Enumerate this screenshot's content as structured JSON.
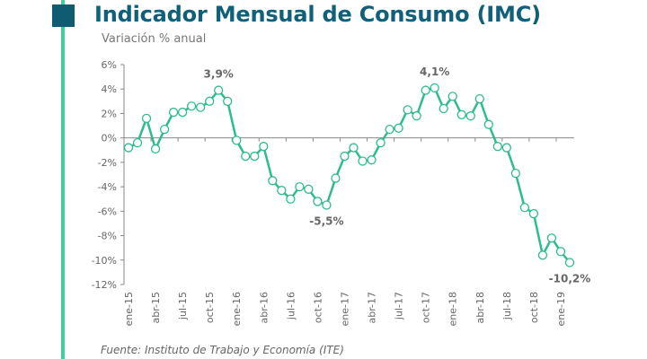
{
  "header": {
    "title": "Indicador Mensual de Consumo (IMC)",
    "subtitle": "Variación % anual"
  },
  "footer": {
    "source": "Fuente: Instituto de Trabajo y Economía (ITE)"
  },
  "colors": {
    "line": "#2dbd8c",
    "accent": "#3ecf9a",
    "title": "#11607a",
    "square": "#0f5b72"
  },
  "chart_data": {
    "type": "line",
    "title": "Indicador Mensual de Consumo (IMC)",
    "ylabel": "Variación % anual",
    "xlabel": "",
    "ylim": [
      -12,
      6
    ],
    "yticks": [
      6,
      4,
      2,
      0,
      -2,
      -4,
      -6,
      -8,
      -10,
      -12
    ],
    "ytick_labels": [
      "6%",
      "4%",
      "2%",
      "0%",
      "-2%",
      "-4%",
      "-6%",
      "-8%",
      "-10%",
      "-12%"
    ],
    "grid": false,
    "legend": "none",
    "x_tick_labels": [
      "ene-15",
      "abr-15",
      "jul-15",
      "oct-15",
      "ene-16",
      "abr-16",
      "jul-16",
      "oct-16",
      "ene-17",
      "abr-17",
      "jul-17",
      "oct-17",
      "ene-18",
      "abr-18",
      "jul-18",
      "oct-18",
      "ene-19"
    ],
    "x_tick_every": 3,
    "series": [
      {
        "name": "IMC",
        "values": [
          -0.8,
          -0.4,
          1.6,
          -0.9,
          0.7,
          2.1,
          2.1,
          2.6,
          2.5,
          3.0,
          3.9,
          3.0,
          -0.2,
          -1.5,
          -1.5,
          -0.7,
          -3.5,
          -4.3,
          -5.0,
          -4.0,
          -4.2,
          -5.2,
          -5.5,
          -3.3,
          -1.5,
          -0.8,
          -1.9,
          -1.8,
          -0.4,
          0.7,
          0.8,
          2.3,
          1.8,
          3.9,
          4.1,
          2.4,
          3.4,
          1.9,
          1.8,
          3.2,
          1.1,
          -0.7,
          -0.8,
          -2.9,
          -5.7,
          -6.2,
          -9.6,
          -8.2,
          -9.3,
          -10.2
        ]
      }
    ],
    "annotations": [
      {
        "index": 10,
        "text": "3,9%",
        "position": "above"
      },
      {
        "index": 22,
        "text": "-5,5%",
        "position": "below"
      },
      {
        "index": 34,
        "text": "4,1%",
        "position": "above"
      },
      {
        "index": 49,
        "text": "-10,2%",
        "position": "below"
      }
    ]
  }
}
